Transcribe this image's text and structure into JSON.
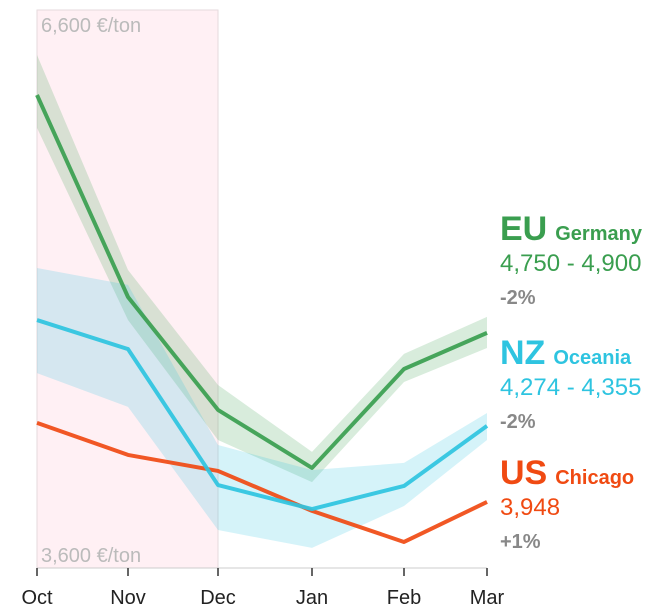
{
  "chart_data": {
    "type": "line",
    "categories": [
      "Oct",
      "Nov",
      "Dec",
      "Jan",
      "Feb",
      "Mar"
    ],
    "ylim": [
      3600,
      6600
    ],
    "yticks": [
      {
        "value": 6600,
        "label": "6,600 €/ton"
      },
      {
        "value": 3600,
        "label": "3,600 €/ton"
      }
    ],
    "shaded_categories": [
      0,
      2
    ],
    "series": [
      {
        "name": "EU",
        "region": "Germany",
        "color": "#3a9e4f",
        "values": [
          6143,
          5057,
          4450,
          4138,
          4670,
          4864
        ],
        "upper": [
          6358,
          5202,
          4584,
          4224,
          4751,
          4950
        ],
        "lower": [
          5966,
          4933,
          4288,
          4062,
          4600,
          4783
        ],
        "range": "4,750 - 4,900",
        "change": "-2%"
      },
      {
        "name": "NZ",
        "region": "Oceania",
        "color": "#2ec4e0",
        "values": [
          4933,
          4777,
          4046,
          3917,
          4041,
          4364
        ],
        "upper": [
          5213,
          5122,
          4261,
          4127,
          4165,
          4433
        ],
        "lower": [
          4648,
          4466,
          3804,
          3708,
          3933,
          4288
        ],
        "range": "4,274 - 4,355",
        "change": "-2%"
      },
      {
        "name": "US",
        "region": "Chicago",
        "color": "#f04a12",
        "values": [
          4380,
          4208,
          4122,
          3907,
          3740,
          3955
        ],
        "range": "3,948",
        "change": "+1%"
      }
    ]
  }
}
